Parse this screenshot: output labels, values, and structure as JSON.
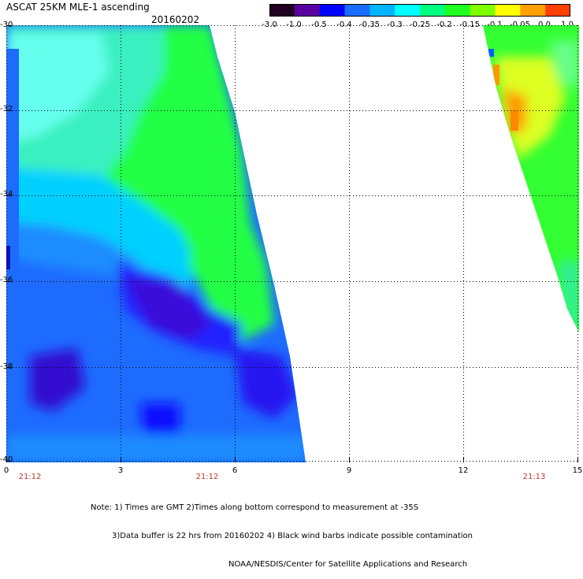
{
  "header": {
    "title": "ASCAT 25KM MLE-1 ascending",
    "date": "20160202"
  },
  "colorbar": {
    "labels": [
      "-3.0",
      "-1.0",
      "-0.5",
      "-0.4",
      "-0.35",
      "-0.3",
      "-0.25",
      "-0.2",
      "-0.15",
      "-0.1",
      "-0.05",
      "0.0",
      "1.0"
    ],
    "colors": [
      "#200020",
      "#5a00a0",
      "#0000ff",
      "#1a6cff",
      "#00b4ff",
      "#00ffff",
      "#00ff80",
      "#20ff20",
      "#80ff00",
      "#ffff00",
      "#ffa000",
      "#ff4000",
      "#ff0000"
    ]
  },
  "axes": {
    "y_ticks": [
      "-30",
      "-32",
      "-34",
      "-36",
      "-38",
      "-40"
    ],
    "x_ticks": [
      "0",
      "3",
      "6",
      "9",
      "12",
      "15"
    ],
    "time_labels": [
      "21:12",
      "21:12",
      "21:13"
    ]
  },
  "notes": [
    "Note: 1) Times are GMT 2)Times along bottom correspond to measurement at -35S",
    "3)Data buffer is 22 hrs from 20160202 4) Black wind barbs indicate possible contamination",
    "NOAA/NESDIS/Center for Satellite Applications and Research"
  ]
}
